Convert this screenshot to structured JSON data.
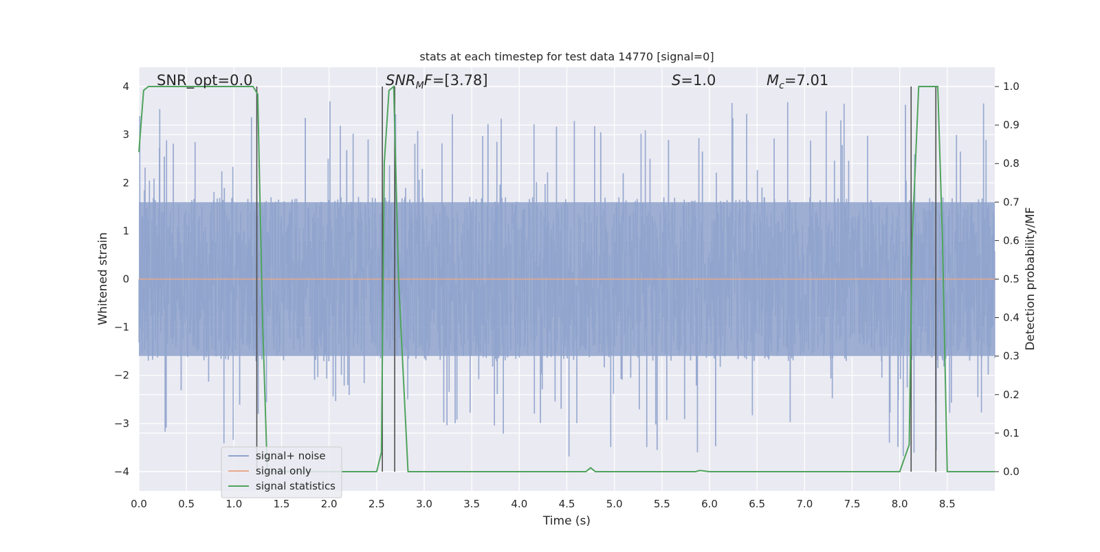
{
  "chart_data": {
    "type": "line",
    "title": "stats at each timestep for test data 14770 [signal=0]",
    "xlabel": "Time (s)",
    "ylabel": "Whitened strain",
    "ylabel_right": "Detection probability/MF",
    "xlim": [
      0,
      9.0
    ],
    "ylim": [
      -4.4,
      4.4
    ],
    "ylim_right": [
      -0.05,
      1.05
    ],
    "x_ticks": [
      0.0,
      0.5,
      1.0,
      1.5,
      2.0,
      2.5,
      3.0,
      3.5,
      4.0,
      4.5,
      5.0,
      5.5,
      6.0,
      6.5,
      7.0,
      7.5,
      8.0,
      8.5
    ],
    "x_tick_labels": [
      "0.0",
      "0.5",
      "1.0",
      "1.5",
      "2.0",
      "2.5",
      "3.0",
      "3.5",
      "4.0",
      "4.5",
      "5.0",
      "5.5",
      "6.0",
      "6.5",
      "7.0",
      "7.5",
      "8.0",
      "8.5"
    ],
    "y_ticks": [
      4,
      3,
      2,
      1,
      0,
      -1,
      -2,
      -3,
      -4
    ],
    "y_tick_labels": [
      "4",
      "3",
      "2",
      "1",
      "0",
      "−1",
      "−2",
      "−3",
      "−4"
    ],
    "y_right_ticks": [
      1.0,
      0.9,
      0.8,
      0.7,
      0.6,
      0.5,
      0.4,
      0.3,
      0.2,
      0.1,
      0.0
    ],
    "y_right_tick_labels": [
      "1.0",
      "0.9",
      "0.8",
      "0.7",
      "0.6",
      "0.5",
      "0.4",
      "0.3",
      "0.2",
      "0.1",
      "0.0"
    ],
    "grid": true,
    "legend_position": "lower-left",
    "annotations": {
      "snr_opt": "SNR_opt=0.0",
      "snr_mf": "=[3.78]",
      "s_value": "=1.0",
      "mc_value": "=7.01"
    },
    "series": [
      {
        "name": "signal+ noise",
        "color": "#8fa3cc",
        "description": "whitened strain noise, approximately -3.7 to 3.9, no coherent signal",
        "x_range": [
          0,
          9.0
        ],
        "y_approx_range": [
          -3.7,
          3.95
        ]
      },
      {
        "name": "signal only",
        "color": "#e8a98a",
        "x": [
          0,
          9.0
        ],
        "y": [
          0,
          0
        ]
      },
      {
        "name": "signal statistics",
        "color": "#4ea35c",
        "axis": "right",
        "x": [
          0.0,
          0.05,
          0.1,
          0.3,
          0.6,
          0.9,
          1.1,
          1.2,
          1.25,
          1.3,
          1.35,
          1.5,
          1.8,
          1.9,
          2.0,
          2.3,
          2.5,
          2.55,
          2.58,
          2.63,
          2.68,
          2.73,
          2.83,
          3.2,
          4.0,
          4.7,
          4.75,
          4.8,
          5.5,
          5.85,
          5.9,
          6.0,
          7.0,
          7.7,
          8.0,
          8.1,
          8.13,
          8.2,
          8.3,
          8.4,
          8.45,
          8.5,
          8.8,
          9.0
        ],
        "y": [
          0.83,
          0.99,
          1.0,
          1.0,
          1.0,
          1.0,
          1.0,
          1.0,
          0.98,
          0.4,
          0.0,
          0.0,
          0.0,
          0.0,
          0.0,
          0.0,
          0.0,
          0.05,
          0.8,
          0.99,
          1.0,
          0.5,
          0.0,
          0.0,
          0.0,
          0.0,
          0.01,
          0.0,
          0.0,
          0.0,
          0.003,
          0.0,
          0.0,
          0.0,
          0.0,
          0.07,
          0.6,
          1.0,
          1.0,
          1.0,
          0.6,
          0.0,
          0.0,
          0.0
        ]
      }
    ],
    "markers": {
      "description": "vertical dark lines at detection transitions",
      "color": "#4d4d4d",
      "x": [
        1.24,
        2.56,
        2.69,
        8.12,
        8.38
      ],
      "y_range_right": [
        0.0,
        1.0
      ]
    }
  }
}
